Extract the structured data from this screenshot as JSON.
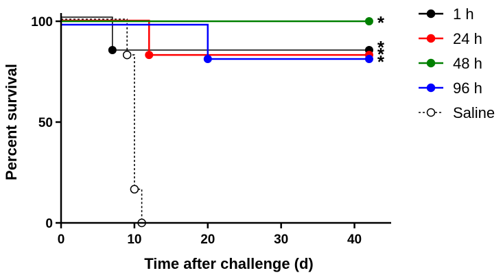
{
  "chart_data": {
    "type": "line",
    "subtype": "kaplan-meier-survival",
    "xlabel": "Time after challenge (d)",
    "ylabel": "Percent survival",
    "xlim": [
      0,
      45
    ],
    "ylim": [
      0,
      100
    ],
    "xticks": [
      0,
      10,
      20,
      30,
      40
    ],
    "yticks": [
      0,
      50,
      100
    ],
    "grid": false,
    "legend_position": "right",
    "series": [
      {
        "name": "1 h",
        "color": "#000000",
        "line_style": "solid",
        "marker": "filled-circle",
        "steps": [
          [
            0,
            100
          ],
          [
            7,
            85.7
          ],
          [
            42,
            85.7
          ]
        ],
        "censor_markers": [
          [
            7,
            85.7
          ],
          [
            42,
            85.7
          ]
        ],
        "significance": "*"
      },
      {
        "name": "24 h",
        "color": "#ff0000",
        "line_style": "solid",
        "marker": "filled-circle",
        "steps": [
          [
            0,
            100
          ],
          [
            12,
            83.3
          ],
          [
            42,
            83.3
          ]
        ],
        "censor_markers": [
          [
            12,
            83.3
          ],
          [
            42,
            83.3
          ]
        ],
        "significance": "*"
      },
      {
        "name": "48 h",
        "color": "#008000",
        "line_style": "solid",
        "marker": "filled-circle",
        "steps": [
          [
            0,
            100
          ],
          [
            42,
            100
          ]
        ],
        "censor_markers": [
          [
            42,
            100
          ]
        ],
        "significance": "*"
      },
      {
        "name": "96 h",
        "color": "#0000ff",
        "line_style": "solid",
        "marker": "filled-circle",
        "steps": [
          [
            0,
            100
          ],
          [
            20,
            81.3
          ],
          [
            42,
            81.3
          ]
        ],
        "censor_markers": [
          [
            20,
            81.3
          ],
          [
            42,
            81.3
          ]
        ],
        "significance": "*"
      },
      {
        "name": "Saline",
        "color": "#000000",
        "line_style": "dashed",
        "marker": "open-circle",
        "steps": [
          [
            0,
            100
          ],
          [
            9,
            83.3
          ],
          [
            10,
            16.7
          ],
          [
            11,
            0
          ]
        ],
        "censor_markers": [
          [
            9,
            83.3
          ],
          [
            10,
            16.7
          ],
          [
            11,
            0
          ]
        ],
        "significance": ""
      }
    ]
  }
}
